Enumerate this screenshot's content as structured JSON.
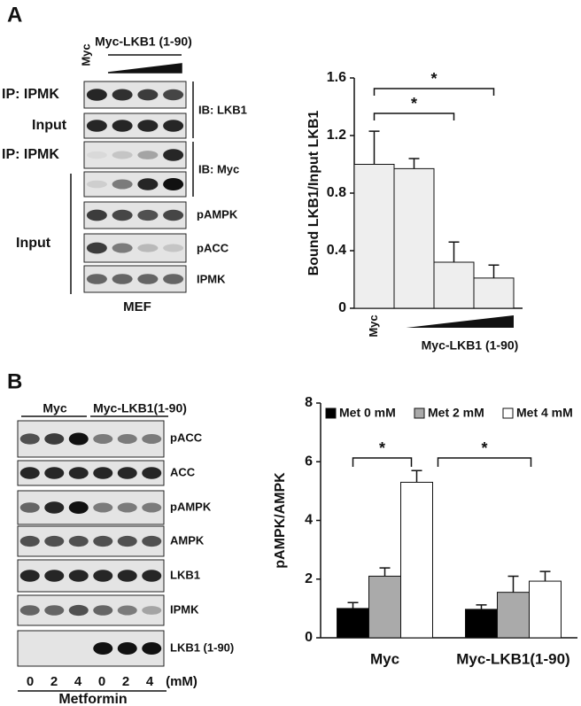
{
  "panel_labels": [
    "A",
    "B"
  ],
  "blot_a": {
    "header": [
      "Myc",
      "Myc-LKB1 (1-90)"
    ],
    "rows": [
      "IP: IPMK",
      "Input",
      "IP: IPMK",
      "Input"
    ],
    "ib": [
      "IB: LKB1",
      "IB: Myc",
      "pAMPK",
      "pACC",
      "IPMK"
    ],
    "cell": "MEF"
  },
  "blot_b": {
    "groups": [
      "Myc",
      "Myc-LKB1(1-90)"
    ],
    "rows": [
      "pACC",
      "ACC",
      "pAMPK",
      "AMPK",
      "LKB1",
      "IPMK",
      "LKB1 (1-90)"
    ],
    "lanes": [
      "0",
      "2",
      "4",
      "0",
      "2",
      "4"
    ],
    "unit": "(mM)",
    "treatment": "Metformin"
  },
  "chart_data": [
    {
      "type": "bar",
      "ylabel": "Bound LKB1/Input LKB1",
      "categories": [
        "Myc",
        null,
        null,
        null
      ],
      "xlabel": "Myc-LKB1 (1-90)",
      "values": [
        1.0,
        0.97,
        0.32,
        0.21
      ],
      "errors": [
        0.23,
        0.07,
        0.14,
        0.09
      ],
      "color": "#eeeeee",
      "ylim": [
        0,
        1.6
      ],
      "yticks": [
        0,
        0.4,
        0.8,
        1.2,
        1.6
      ],
      "annotations": [
        "*",
        "*"
      ]
    },
    {
      "type": "grouped_bar",
      "ylabel": "pAMPK/AMPK",
      "categories": [
        "Myc",
        "Myc-LKB1(1-90)"
      ],
      "series": [
        {
          "name": "Met 0 mM",
          "color": "#000000",
          "values": [
            1.0,
            0.97
          ],
          "errors": [
            0.2,
            0.15
          ]
        },
        {
          "name": "Met 2 mM",
          "color": "#aaaaaa",
          "values": [
            2.1,
            1.55
          ],
          "errors": [
            0.28,
            0.55
          ]
        },
        {
          "name": "Met 4 mM",
          "color": "#ffffff",
          "values": [
            5.3,
            1.93
          ],
          "errors": [
            0.4,
            0.33
          ]
        }
      ],
      "ylim": [
        0,
        8
      ],
      "yticks": [
        0,
        2,
        4,
        6,
        8
      ],
      "annotations": [
        "*",
        "*"
      ]
    }
  ]
}
